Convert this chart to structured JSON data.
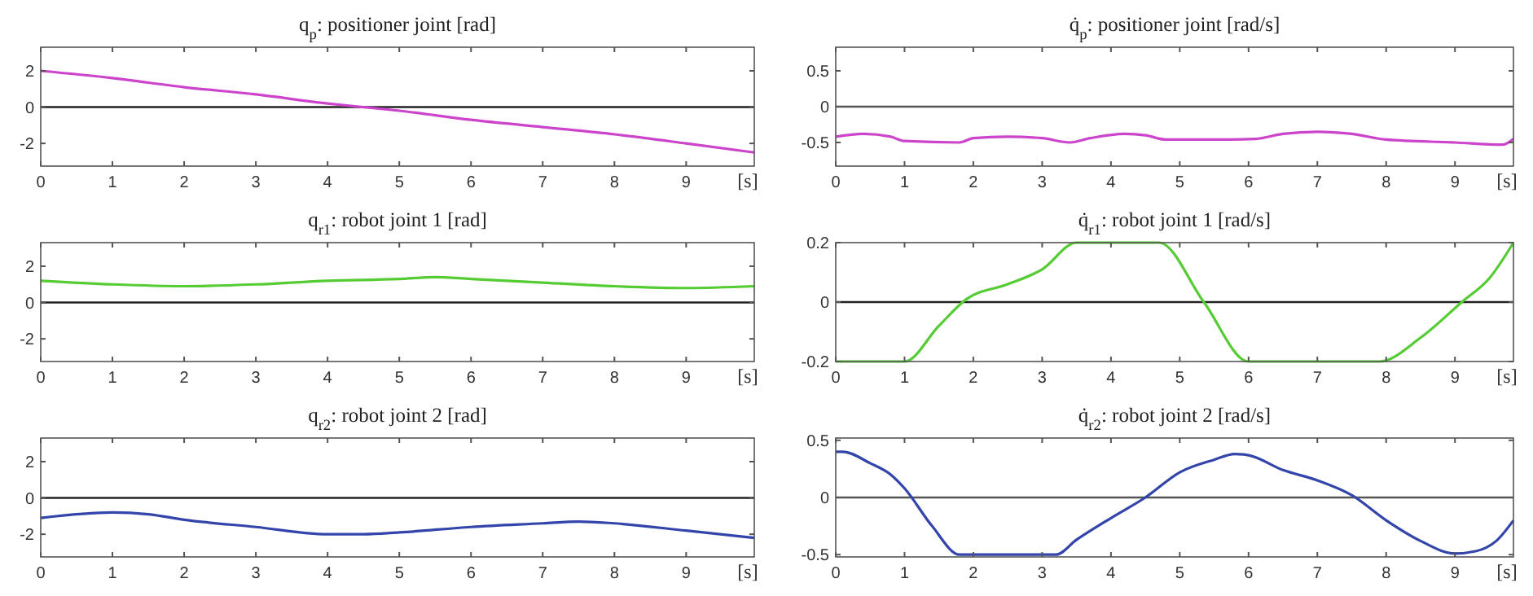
{
  "chart_data": [
    {
      "type": "line",
      "title": "q$_{p}$: positioner joint [rad]",
      "xlabel": "[s]",
      "x": [
        0,
        1,
        2,
        3,
        4,
        4.5,
        5,
        6,
        7,
        8,
        9,
        9.95
      ],
      "series": [
        {
          "color": "#cc44cc",
          "values": [
            2.0,
            1.6,
            1.1,
            0.7,
            0.2,
            0,
            -0.2,
            -0.7,
            -1.1,
            -1.5,
            -2.0,
            -2.5
          ]
        }
      ],
      "xlim": [
        0,
        9.95
      ],
      "xticks": [
        0,
        1,
        2,
        3,
        4,
        5,
        6,
        7,
        8,
        9
      ],
      "ylim": [
        -3.25,
        3.3
      ],
      "yticks": [
        -2,
        0,
        2
      ],
      "ref_lines": [
        {
          "axis": "y",
          "value": 0,
          "color": "#222222"
        }
      ]
    },
    {
      "type": "line",
      "title": "q̇$_{p}$: positioner joint [rad/s]",
      "xlabel": "[s]",
      "x": [
        0,
        0.4,
        0.8,
        1.0,
        1.8,
        2.0,
        2.5,
        3.0,
        3.4,
        3.7,
        4.2,
        4.5,
        4.8,
        5.5,
        6.1,
        6.5,
        7.0,
        7.5,
        8.0,
        9.0,
        9.7,
        9.85
      ],
      "series": [
        {
          "color": "#cc44cc",
          "values": [
            -0.42,
            -0.38,
            -0.42,
            -0.48,
            -0.5,
            -0.44,
            -0.42,
            -0.44,
            -0.5,
            -0.44,
            -0.38,
            -0.4,
            -0.46,
            -0.46,
            -0.45,
            -0.38,
            -0.35,
            -0.38,
            -0.46,
            -0.5,
            -0.53,
            -0.45
          ]
        }
      ],
      "xlim": [
        0,
        9.85
      ],
      "xticks": [
        0,
        1,
        2,
        3,
        4,
        5,
        6,
        7,
        8,
        9
      ],
      "ylim": [
        -0.83,
        0.83
      ],
      "yticks": [
        -0.5,
        0,
        0.5
      ],
      "ref_lines": [
        {
          "axis": "y",
          "value": 0,
          "color": "#555555"
        }
      ]
    },
    {
      "type": "line",
      "title": "q$_{r1}$: robot joint 1 [rad]",
      "xlabel": "[s]",
      "x": [
        0,
        1,
        2,
        3,
        4,
        5,
        5.5,
        6,
        7,
        8,
        9,
        9.95
      ],
      "series": [
        {
          "color": "#55cc33",
          "values": [
            1.2,
            1.0,
            0.9,
            1.0,
            1.2,
            1.3,
            1.4,
            1.3,
            1.1,
            0.9,
            0.8,
            0.9
          ]
        }
      ],
      "xlim": [
        0,
        9.95
      ],
      "xticks": [
        0,
        1,
        2,
        3,
        4,
        5,
        6,
        7,
        8,
        9
      ],
      "ylim": [
        -3.25,
        3.3
      ],
      "yticks": [
        -2,
        0,
        2
      ],
      "ref_lines": [
        {
          "axis": "y",
          "value": 0,
          "color": "#222222"
        }
      ]
    },
    {
      "type": "line",
      "title": "q̇$_{r1}$: robot joint 1 [rad/s]",
      "xlabel": "[s]",
      "x": [
        0,
        1,
        1.5,
        1.9,
        2.5,
        3,
        3.5,
        4.7,
        5.35,
        6,
        7.9,
        8.5,
        9.1,
        9.5,
        9.85
      ],
      "series": [
        {
          "color": "#55cc33",
          "values": [
            -0.2,
            -0.2,
            -0.08,
            0.01,
            0.06,
            0.11,
            0.2,
            0.2,
            0,
            -0.2,
            -0.2,
            -0.12,
            0,
            0.08,
            0.2
          ]
        }
      ],
      "xlim": [
        0,
        9.85
      ],
      "xticks": [
        0,
        1,
        2,
        3,
        4,
        5,
        6,
        7,
        8,
        9
      ],
      "ylim": [
        -0.2,
        0.2
      ],
      "yticks": [
        -0.2,
        0,
        0.2
      ],
      "ref_lines": [
        {
          "axis": "y",
          "value": 0,
          "color": "#222222"
        }
      ]
    },
    {
      "type": "line",
      "title": "q$_{r2}$: robot joint 2 [rad]",
      "xlabel": "[s]",
      "x": [
        0,
        1,
        1.5,
        2,
        3,
        4,
        4.5,
        5,
        6,
        7,
        7.5,
        8,
        9,
        9.95
      ],
      "series": [
        {
          "color": "#3344aa",
          "values": [
            -1.1,
            -0.8,
            -0.9,
            -1.2,
            -1.6,
            -2.0,
            -2.0,
            -1.9,
            -1.6,
            -1.4,
            -1.3,
            -1.4,
            -1.8,
            -2.2
          ]
        }
      ],
      "xlim": [
        0,
        9.95
      ],
      "xticks": [
        0,
        1,
        2,
        3,
        4,
        5,
        6,
        7,
        8,
        9
      ],
      "ylim": [
        -3.25,
        3.3
      ],
      "yticks": [
        -2,
        0,
        2
      ],
      "ref_lines": [
        {
          "axis": "y",
          "value": 0,
          "color": "#222222"
        }
      ]
    },
    {
      "type": "line",
      "title": "q̇$_{r2}$: robot joint 2 [rad/s]",
      "xlabel": "[s]",
      "x": [
        0,
        0.1,
        0.5,
        0.8,
        1,
        1.4,
        1.8,
        3.2,
        3.5,
        4,
        4.5,
        5,
        5.5,
        5.8,
        6.0,
        6.5,
        7.0,
        7.5,
        8,
        8.5,
        9,
        9.3,
        9.6,
        9.85
      ],
      "series": [
        {
          "color": "#3344aa",
          "values": [
            0.4,
            0.4,
            0.3,
            0.2,
            0.08,
            -0.25,
            -0.5,
            -0.5,
            -0.37,
            -0.18,
            0.0,
            0.22,
            0.33,
            0.38,
            0.37,
            0.24,
            0.15,
            0.02,
            -0.2,
            -0.38,
            -0.49,
            -0.47,
            -0.38,
            -0.2
          ]
        }
      ],
      "xlim": [
        0,
        9.85
      ],
      "xticks": [
        0,
        1,
        2,
        3,
        4,
        5,
        6,
        7,
        8,
        9
      ],
      "ylim": [
        -0.52,
        0.52
      ],
      "yticks": [
        -0.5,
        0,
        0.5
      ],
      "ref_lines": [
        {
          "axis": "y",
          "value": 0,
          "color": "#555555"
        }
      ]
    }
  ]
}
